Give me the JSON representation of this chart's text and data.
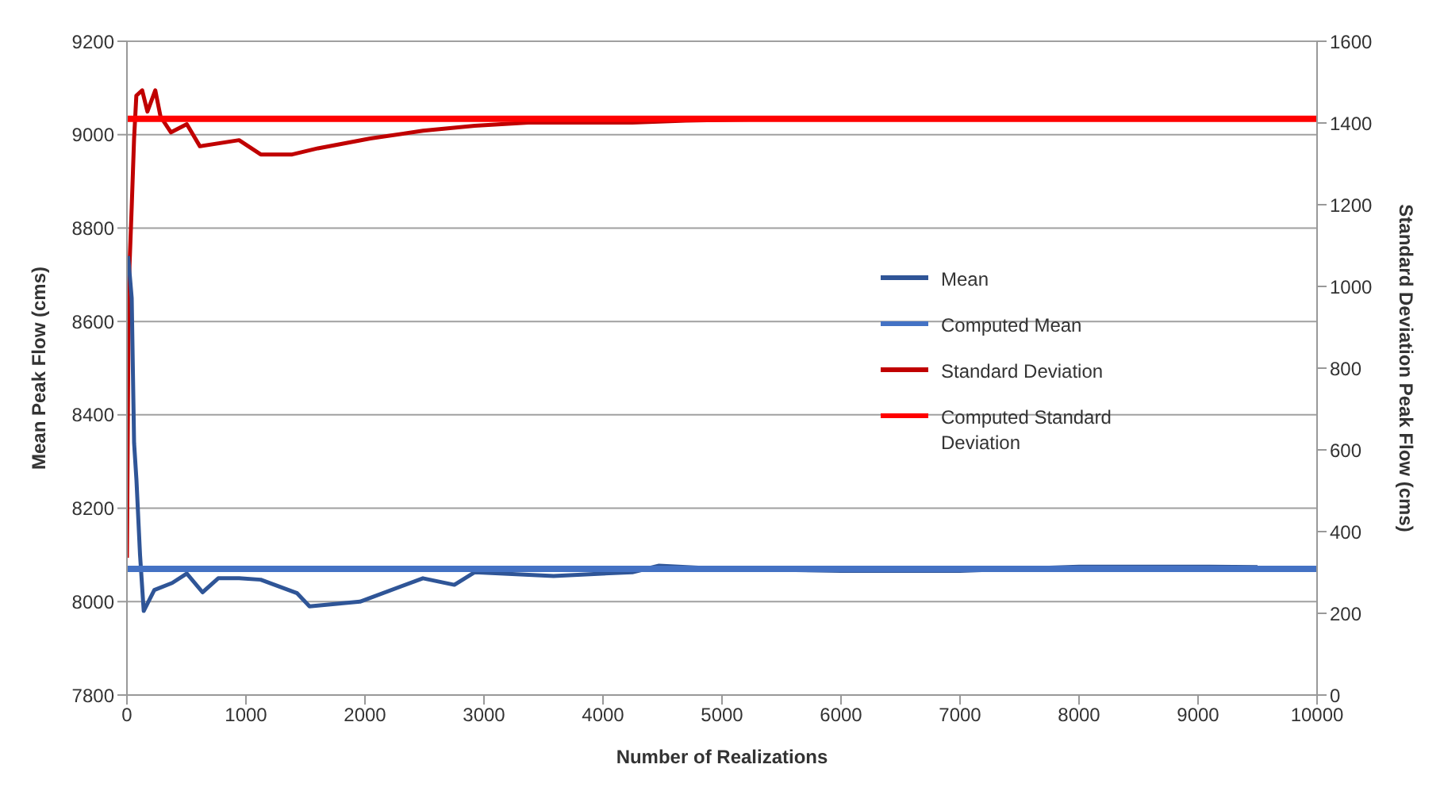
{
  "chart_data": {
    "type": "line",
    "xlabel": "Number of Realizations",
    "ylabel": "Mean Peak Flow (cms)",
    "y2label": "Standard Deviation Peak Flow (cms)",
    "xlim": [
      0,
      10000
    ],
    "xticks": [
      0,
      1000,
      2000,
      3000,
      4000,
      5000,
      6000,
      7000,
      8000,
      9000,
      10000
    ],
    "ylim": [
      7800,
      9200
    ],
    "yticks": [
      7800,
      8000,
      8200,
      8400,
      8600,
      8800,
      9000,
      9200
    ],
    "y2lim": [
      0,
      1600
    ],
    "y2ticks": [
      0,
      200,
      400,
      600,
      800,
      1000,
      1200,
      1400,
      1600
    ],
    "grid": "y",
    "legend": "right",
    "marker": "none",
    "series": [
      {
        "name": "Mean",
        "color": "#2f5597",
        "x": [
          10,
          40,
          60,
          80,
          110,
          141,
          230,
          380,
          503,
          635,
          767,
          942,
          1124,
          1430,
          1534,
          1958,
          2487,
          2751,
          2923,
          3585,
          4246,
          4471,
          5000,
          6000,
          7000,
          8000,
          9000,
          9500
        ],
        "values": [
          8740,
          8650,
          8340,
          8260,
          8100,
          7980,
          8025,
          8040,
          8060,
          8020,
          8050,
          8050,
          8047,
          8018,
          7990,
          8000,
          8050,
          8036,
          8063,
          8055,
          8063,
          8077,
          8070,
          8066,
          8066,
          8075,
          8075,
          8074
        ]
      },
      {
        "name": "Computed Mean",
        "color": "#4472c4",
        "x": [
          0,
          10000
        ],
        "values": [
          8070,
          8070
        ]
      },
      {
        "name": "Standard Deviation",
        "color": "#c00000",
        "axis": "y2",
        "x": [
          0,
          15,
          40,
          60,
          79,
          128,
          172,
          238,
          282,
          370,
          503,
          613,
          942,
          1124,
          1389,
          1605,
          2046,
          2487,
          2923,
          3373,
          4246,
          4696,
          5500,
          7500
        ],
        "values": [
          336,
          1000,
          1194,
          1362,
          1467,
          1480,
          1428,
          1480,
          1416,
          1377,
          1397,
          1343,
          1358,
          1323,
          1323,
          1338,
          1362,
          1381,
          1393,
          1401,
          1401,
          1406,
          1410,
          1410
        ]
      },
      {
        "name": "Computed Standard Deviation",
        "color": "#ff0000",
        "axis": "y2",
        "x": [
          0,
          10000
        ],
        "values": [
          1410,
          1410
        ]
      }
    ]
  }
}
